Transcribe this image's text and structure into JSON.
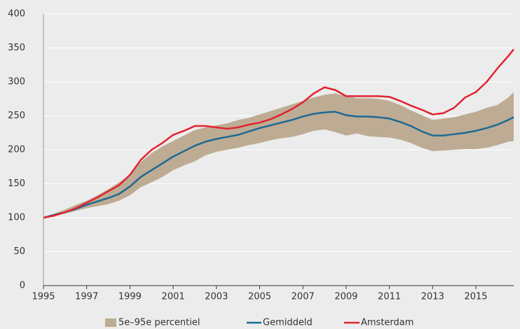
{
  "chart_data": {
    "type": "line",
    "x": [
      1995,
      1995.5,
      1996,
      1996.5,
      1997,
      1997.5,
      1998,
      1998.5,
      1999,
      1999.5,
      2000,
      2000.5,
      2001,
      2001.5,
      2002,
      2002.5,
      2003,
      2003.5,
      2004,
      2004.5,
      2005,
      2005.5,
      2006,
      2006.5,
      2007,
      2007.5,
      2008,
      2008.5,
      2009,
      2009.5,
      2010,
      2010.5,
      2011,
      2011.5,
      2012,
      2012.5,
      2013,
      2013.5,
      2014,
      2014.5,
      2015,
      2015.5,
      2016,
      2016.5,
      2016.75
    ],
    "band": {
      "name": "5e–95e percentiel",
      "color": "#bdac93",
      "lower": [
        100,
        103,
        106,
        110,
        114,
        117,
        120,
        125,
        133,
        145,
        152,
        160,
        170,
        177,
        183,
        192,
        197,
        200,
        203,
        207,
        210,
        214,
        217,
        219,
        223,
        228,
        230,
        226,
        221,
        224,
        220,
        219,
        218,
        215,
        210,
        203,
        198,
        199,
        200,
        201,
        201,
        203,
        207,
        212,
        213
      ],
      "upper": [
        101,
        106,
        112,
        119,
        125,
        133,
        142,
        152,
        163,
        182,
        195,
        205,
        213,
        221,
        229,
        233,
        236,
        239,
        244,
        247,
        252,
        257,
        262,
        267,
        272,
        277,
        281,
        283,
        279,
        276,
        276,
        275,
        272,
        266,
        258,
        251,
        244,
        246,
        248,
        252,
        256,
        262,
        266,
        277,
        285
      ]
    },
    "series": [
      {
        "name": "Gemiddeld",
        "color": "#1d6994",
        "values": [
          100,
          104,
          108,
          113,
          119,
          124,
          129,
          135,
          146,
          160,
          170,
          180,
          190,
          198,
          206,
          212,
          216,
          219,
          222,
          227,
          232,
          236,
          240,
          244,
          249,
          253,
          255,
          256,
          251,
          249,
          249,
          248,
          246,
          241,
          235,
          227,
          221,
          221,
          223,
          225,
          228,
          232,
          237,
          244,
          248
        ]
      },
      {
        "name": "Amsterdam",
        "color": "#e2232f",
        "values": [
          100,
          103,
          108,
          114,
          122,
          130,
          139,
          148,
          163,
          185,
          200,
          210,
          222,
          228,
          235,
          235,
          233,
          231,
          233,
          237,
          240,
          245,
          252,
          260,
          270,
          283,
          292,
          288,
          279,
          279,
          279,
          279,
          278,
          272,
          265,
          259,
          252,
          254,
          262,
          277,
          285,
          300,
          320,
          338,
          348
        ]
      }
    ],
    "xlim": [
      1995,
      2016.75
    ],
    "xticks": [
      1995,
      1997,
      1999,
      2001,
      2003,
      2005,
      2007,
      2009,
      2011,
      2013,
      2015
    ],
    "ylim": [
      0,
      400
    ],
    "yticks": [
      0,
      50,
      100,
      150,
      200,
      250,
      300,
      350,
      400
    ],
    "grid": true,
    "legend": "bottom"
  }
}
